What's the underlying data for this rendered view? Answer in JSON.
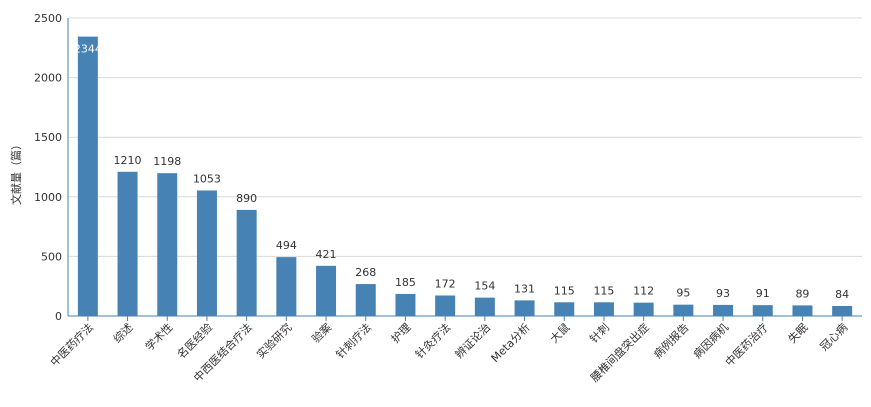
{
  "chart_data": {
    "type": "bar",
    "ylabel": "文献量（篇）",
    "xlabel": "",
    "ylim": [
      0,
      2500
    ],
    "yticks": [
      0,
      500,
      1000,
      1500,
      2000,
      2500
    ],
    "grid": true,
    "bar_color": "#4682b4",
    "categories": [
      "中医药疗法",
      "综述",
      "学术性",
      "名医经验",
      "中西医结合疗法",
      "实验研究",
      "验案",
      "针刺疗法",
      "护理",
      "针灸疗法",
      "辨证论治",
      "Meta分析",
      "大鼠",
      "针刺",
      "腰椎间盘突出症",
      "病例报告",
      "病因病机",
      "中医药治疗",
      "失眠",
      "冠心病"
    ],
    "values": [
      2344,
      1210,
      1198,
      1053,
      890,
      494,
      421,
      268,
      185,
      172,
      154,
      131,
      115,
      115,
      112,
      95,
      93,
      91,
      89,
      84
    ]
  }
}
